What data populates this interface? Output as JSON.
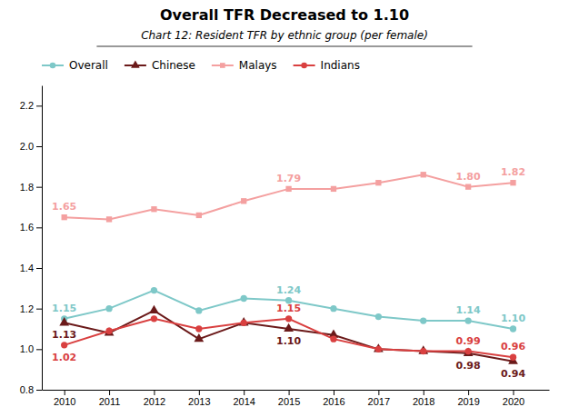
{
  "chart_data": {
    "type": "line",
    "title": "Overall TFR Decreased to 1.10",
    "subtitle": "Chart 12: Resident TFR by ethnic group (per female)",
    "x": [
      2010,
      2011,
      2012,
      2013,
      2014,
      2015,
      2016,
      2017,
      2018,
      2019,
      2020
    ],
    "series": [
      {
        "name": "Overall",
        "color": "#7ec8c8",
        "marker": "circle",
        "values": [
          1.15,
          1.2,
          1.29,
          1.19,
          1.25,
          1.24,
          1.2,
          1.16,
          1.14,
          1.14,
          1.1
        ],
        "value_labels": [
          "1.15",
          null,
          null,
          null,
          null,
          "1.24",
          null,
          null,
          null,
          "1.14",
          "1.10"
        ]
      },
      {
        "name": "Chinese",
        "color": "#6b1a1a",
        "marker": "triangle",
        "values": [
          1.13,
          1.08,
          1.19,
          1.05,
          1.13,
          1.1,
          1.07,
          1.0,
          0.99,
          0.98,
          0.94
        ],
        "value_labels": [
          "1.13",
          null,
          null,
          null,
          null,
          "1.10",
          null,
          null,
          null,
          "0.98",
          "0.94"
        ]
      },
      {
        "name": "Malays",
        "color": "#f4a0a0",
        "marker": "square",
        "values": [
          1.65,
          1.64,
          1.69,
          1.66,
          1.73,
          1.79,
          1.79,
          1.82,
          1.86,
          1.8,
          1.82
        ],
        "value_labels": [
          "1.65",
          null,
          null,
          null,
          null,
          "1.79",
          null,
          null,
          null,
          "1.80",
          "1.82"
        ]
      },
      {
        "name": "Indians",
        "color": "#d94040",
        "marker": "circle",
        "values": [
          1.02,
          1.09,
          1.15,
          1.1,
          1.13,
          1.15,
          1.05,
          1.0,
          0.99,
          0.99,
          0.96
        ],
        "value_labels": [
          "1.02",
          null,
          null,
          null,
          null,
          "1.15",
          null,
          null,
          null,
          "0.99",
          "0.96"
        ]
      }
    ],
    "xlim": [
      2009.5,
      2020.8
    ],
    "xticks": [
      2010,
      2011,
      2012,
      2013,
      2014,
      2015,
      2016,
      2017,
      2018,
      2019,
      2020
    ],
    "ylim": [
      0.8,
      2.3
    ],
    "yticks": [
      0.8,
      {
        "value": 1.0,
        "label": "1.0"
      },
      1.2,
      1.4,
      1.6,
      1.8,
      {
        "value": 2.0,
        "label": "2.0"
      },
      2.2
    ],
    "data_labels": true,
    "legend": "upper left",
    "grid": false
  }
}
